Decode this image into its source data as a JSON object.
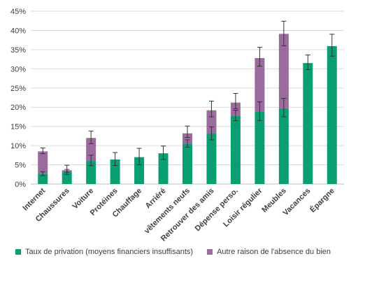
{
  "chart_data": {
    "type": "bar",
    "stacked": true,
    "categories": [
      "Internet",
      "Chaussures",
      "Voiture",
      "Protéines",
      "Chauffage",
      "Arriéré",
      "vêtements neufs",
      "Retrouver des amis",
      "Dépense perso.",
      "Loisir régulier",
      "Meubles",
      "Vacances",
      "Épargne"
    ],
    "series": [
      {
        "name": "Taux de privation (moyens financiers insuffisants)",
        "color": "#0a9e73",
        "values": [
          2.7,
          3.1,
          6.0,
          6.4,
          7.0,
          8.0,
          10.5,
          13.2,
          17.8,
          18.9,
          19.7,
          31.5,
          35.9
        ],
        "error_low": [
          2.2,
          2.5,
          4.8,
          4.8,
          5.0,
          6.4,
          9.6,
          11.5,
          16.5,
          16.5,
          17.5,
          29.8,
          33.3
        ],
        "error_high": [
          3.2,
          3.8,
          7.5,
          8.2,
          9.3,
          9.9,
          11.5,
          14.9,
          19.2,
          21.4,
          22.3,
          33.6,
          39.0
        ]
      },
      {
        "name": "Autre raison de l'absence du bien",
        "color": "#9b6b9e",
        "values": [
          5.8,
          0.5,
          6.0,
          0,
          0,
          0,
          2.7,
          6.0,
          3.4,
          13.9,
          19.4,
          0,
          0
        ],
        "error_low": [
          7.9,
          3.1,
          10.5,
          null,
          null,
          null,
          12.1,
          17.5,
          19.6,
          30.7,
          36.0,
          null,
          null
        ],
        "error_high": [
          9.4,
          4.9,
          13.8,
          null,
          null,
          null,
          15.1,
          21.6,
          23.6,
          35.6,
          42.4,
          null,
          null
        ]
      }
    ],
    "yticks": [
      "0%",
      "5%",
      "10%",
      "15%",
      "20%",
      "25%",
      "30%",
      "35%",
      "40%",
      "45%"
    ],
    "ylim": [
      0,
      45
    ],
    "grid": true,
    "legend_position": "bottom",
    "title": "",
    "xlabel": "",
    "ylabel": ""
  }
}
